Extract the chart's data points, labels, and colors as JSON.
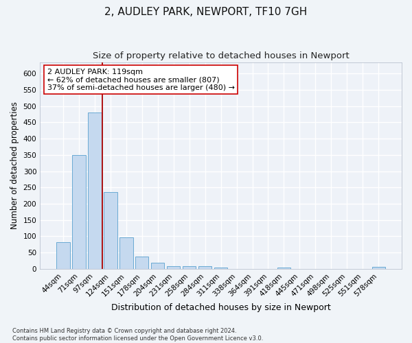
{
  "title": "2, AUDLEY PARK, NEWPORT, TF10 7GH",
  "subtitle": "Size of property relative to detached houses in Newport",
  "xlabel": "Distribution of detached houses by size in Newport",
  "ylabel": "Number of detached properties",
  "bar_color": "#c5d9ef",
  "bar_edge_color": "#6aaad4",
  "categories": [
    "44sqm",
    "71sqm",
    "97sqm",
    "124sqm",
    "151sqm",
    "178sqm",
    "204sqm",
    "231sqm",
    "258sqm",
    "284sqm",
    "311sqm",
    "338sqm",
    "364sqm",
    "391sqm",
    "418sqm",
    "445sqm",
    "471sqm",
    "498sqm",
    "525sqm",
    "551sqm",
    "578sqm"
  ],
  "values": [
    83,
    350,
    480,
    235,
    96,
    37,
    18,
    8,
    9,
    8,
    5,
    0,
    0,
    0,
    5,
    0,
    0,
    0,
    0,
    0,
    6
  ],
  "ylim": [
    0,
    635
  ],
  "yticks": [
    0,
    50,
    100,
    150,
    200,
    250,
    300,
    350,
    400,
    450,
    500,
    550,
    600
  ],
  "vline_x": 2.5,
  "vline_color": "#aa0000",
  "annotation_text": "2 AUDLEY PARK: 119sqm\n← 62% of detached houses are smaller (807)\n37% of semi-detached houses are larger (480) →",
  "annotation_box_color": "#ffffff",
  "annotation_box_edgecolor": "#cc0000",
  "footer_text": "Contains HM Land Registry data © Crown copyright and database right 2024.\nContains public sector information licensed under the Open Government Licence v3.0.",
  "bg_color": "#f0f4f8",
  "plot_bg_color": "#eef2f8",
  "grid_color": "#ffffff",
  "title_fontsize": 11,
  "subtitle_fontsize": 9.5,
  "tick_fontsize": 7.5,
  "ylabel_fontsize": 8.5,
  "xlabel_fontsize": 9,
  "footer_fontsize": 6,
  "annotation_fontsize": 8
}
